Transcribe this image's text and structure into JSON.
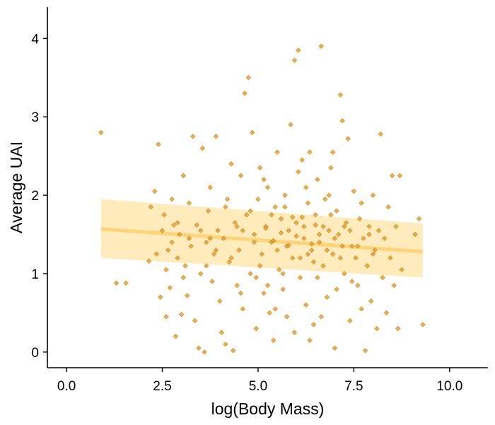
{
  "chart_data": {
    "type": "scatter",
    "title": "",
    "xlabel": "log(Body Mass)",
    "ylabel": "Average UAI",
    "xlim": [
      -0.5,
      11.0
    ],
    "ylim": [
      -0.2,
      4.4
    ],
    "xticks": [
      0.0,
      2.5,
      5.0,
      7.5,
      10.0
    ],
    "xtick_labels": [
      "0.0",
      "2.5",
      "5.0",
      "7.5",
      "10.0"
    ],
    "yticks": [
      0,
      1,
      2,
      3,
      4
    ],
    "ytick_labels": [
      "0",
      "1",
      "2",
      "3",
      "4"
    ],
    "grid": false,
    "legend": "none",
    "colors": {
      "points": "#E69F2E",
      "fit_line": "#FFD37A",
      "ribbon": "#FFE7B0",
      "axis": "#000000"
    },
    "trend": {
      "x": [
        0.9,
        9.3
      ],
      "y": [
        1.57,
        1.28
      ],
      "ci_lower": [
        1.2,
        0.95
      ],
      "ci_upper": [
        1.95,
        1.64
      ]
    },
    "points": [
      [
        0.9,
        2.8
      ],
      [
        1.3,
        0.88
      ],
      [
        1.55,
        0.88
      ],
      [
        2.15,
        1.16
      ],
      [
        2.2,
        1.85
      ],
      [
        2.3,
        2.05
      ],
      [
        2.35,
        1.25
      ],
      [
        2.4,
        2.65
      ],
      [
        2.45,
        0.7
      ],
      [
        2.5,
        1.55
      ],
      [
        2.55,
        1.75
      ],
      [
        2.6,
        1.05
      ],
      [
        2.6,
        0.45
      ],
      [
        2.65,
        1.3
      ],
      [
        2.7,
        0.82
      ],
      [
        2.75,
        1.95
      ],
      [
        2.8,
        1.62
      ],
      [
        2.85,
        0.2
      ],
      [
        2.9,
        1.2
      ],
      [
        2.95,
        1.5
      ],
      [
        3.0,
        0.48
      ],
      [
        3.05,
        2.25
      ],
      [
        3.1,
        1.1
      ],
      [
        3.15,
        0.72
      ],
      [
        3.2,
        1.9
      ],
      [
        3.25,
        1.35
      ],
      [
        3.3,
        2.75
      ],
      [
        3.35,
        0.4
      ],
      [
        3.4,
        1.62
      ],
      [
        3.45,
        0.05
      ],
      [
        3.5,
        1.0
      ],
      [
        3.55,
        2.6
      ],
      [
        3.6,
        0.0
      ],
      [
        3.65,
        1.4
      ],
      [
        3.7,
        1.8
      ],
      [
        3.75,
        2.1
      ],
      [
        3.8,
        0.9
      ],
      [
        3.85,
        1.25
      ],
      [
        3.9,
        2.75
      ],
      [
        3.95,
        1.55
      ],
      [
        4.0,
        0.65
      ],
      [
        4.05,
        0.25
      ],
      [
        4.1,
        1.45
      ],
      [
        4.15,
        0.1
      ],
      [
        4.2,
        1.95
      ],
      [
        4.25,
        1.15
      ],
      [
        4.3,
        2.4
      ],
      [
        4.35,
        0.02
      ],
      [
        4.4,
        1.65
      ],
      [
        4.45,
        0.85
      ],
      [
        4.5,
        1.3
      ],
      [
        4.55,
        2.25
      ],
      [
        4.6,
        0.55
      ],
      [
        4.65,
        3.3
      ],
      [
        4.7,
        1.75
      ],
      [
        4.75,
        3.5
      ],
      [
        4.8,
        1.0
      ],
      [
        4.85,
        2.8
      ],
      [
        4.9,
        1.5
      ],
      [
        4.95,
        0.3
      ],
      [
        5.0,
        1.95
      ],
      [
        5.05,
        2.35
      ],
      [
        5.1,
        1.25
      ],
      [
        5.15,
        0.75
      ],
      [
        5.2,
        1.6
      ],
      [
        5.25,
        2.1
      ],
      [
        5.3,
        0.5
      ],
      [
        5.35,
        1.4
      ],
      [
        5.4,
        0.15
      ],
      [
        5.45,
        1.85
      ],
      [
        5.5,
        2.55
      ],
      [
        5.55,
        1.05
      ],
      [
        5.6,
        1.7
      ],
      [
        5.65,
        0.8
      ],
      [
        5.7,
        2.0
      ],
      [
        5.75,
        1.35
      ],
      [
        5.8,
        1.55
      ],
      [
        5.85,
        2.9
      ],
      [
        5.9,
        1.2
      ],
      [
        5.95,
        3.72
      ],
      [
        6.0,
        1.65
      ],
      [
        6.05,
        3.85
      ],
      [
        6.1,
        0.95
      ],
      [
        6.15,
        2.45
      ],
      [
        6.2,
        1.45
      ],
      [
        6.25,
        0.6
      ],
      [
        6.3,
        1.9
      ],
      [
        6.35,
        2.55
      ],
      [
        6.4,
        1.3
      ],
      [
        6.45,
        0.35
      ],
      [
        6.5,
        1.75
      ],
      [
        6.55,
        2.2
      ],
      [
        6.6,
        1.4
      ],
      [
        6.65,
        3.9
      ],
      [
        6.7,
        1.1
      ],
      [
        6.75,
        1.95
      ],
      [
        6.8,
        0.7
      ],
      [
        6.85,
        1.55
      ],
      [
        6.9,
        2.35
      ],
      [
        6.95,
        1.25
      ],
      [
        7.0,
        0.05
      ],
      [
        7.05,
        1.8
      ],
      [
        7.1,
        1.5
      ],
      [
        7.15,
        3.28
      ],
      [
        7.2,
        2.95
      ],
      [
        7.25,
        1.0
      ],
      [
        7.3,
        1.65
      ],
      [
        7.35,
        2.72
      ],
      [
        7.4,
        0.4
      ],
      [
        7.45,
        1.35
      ],
      [
        7.5,
        2.05
      ],
      [
        7.55,
        1.2
      ],
      [
        7.6,
        0.85
      ],
      [
        7.65,
        1.7
      ],
      [
        7.7,
        0.55
      ],
      [
        7.75,
        1.45
      ],
      [
        7.8,
        0.02
      ],
      [
        7.85,
        1.1
      ],
      [
        7.9,
        1.6
      ],
      [
        7.95,
        0.65
      ],
      [
        8.0,
        2.0
      ],
      [
        8.05,
        1.3
      ],
      [
        8.1,
        0.3
      ],
      [
        8.15,
        1.55
      ],
      [
        8.2,
        2.78
      ],
      [
        8.25,
        0.95
      ],
      [
        8.3,
        1.45
      ],
      [
        8.35,
        0.5
      ],
      [
        8.45,
        1.2
      ],
      [
        8.5,
        2.25
      ],
      [
        8.55,
        0.85
      ],
      [
        8.6,
        1.6
      ],
      [
        8.65,
        0.3
      ],
      [
        8.7,
        2.25
      ],
      [
        8.75,
        1.05
      ],
      [
        9.1,
        1.5
      ],
      [
        9.2,
        1.7
      ],
      [
        9.3,
        0.35
      ],
      [
        5.2,
        1.58
      ],
      [
        5.4,
        1.42
      ],
      [
        5.6,
        1.52
      ],
      [
        5.8,
        1.36
      ],
      [
        6.0,
        1.48
      ],
      [
        6.2,
        1.6
      ],
      [
        6.4,
        1.38
      ],
      [
        6.6,
        1.5
      ],
      [
        6.8,
        1.3
      ],
      [
        7.0,
        1.45
      ],
      [
        7.2,
        1.35
      ],
      [
        6.3,
        1.25
      ],
      [
        6.5,
        1.62
      ],
      [
        5.9,
        1.72
      ],
      [
        6.1,
        1.2
      ],
      [
        6.7,
        1.6
      ],
      [
        5.5,
        1.3
      ],
      [
        7.4,
        1.55
      ],
      [
        4.9,
        1.4
      ],
      [
        6.9,
        1.75
      ],
      [
        5.7,
        1.85
      ],
      [
        6.15,
        1.72
      ],
      [
        6.45,
        1.15
      ],
      [
        5.35,
        1.75
      ],
      [
        7.15,
        1.2
      ],
      [
        4.6,
        1.55
      ],
      [
        3.9,
        1.3
      ],
      [
        3.5,
        1.55
      ],
      [
        3.2,
        1.45
      ],
      [
        2.9,
        1.65
      ],
      [
        4.3,
        1.2
      ],
      [
        4.8,
        1.8
      ],
      [
        5.05,
        1.1
      ],
      [
        7.6,
        1.35
      ],
      [
        8.0,
        1.25
      ],
      [
        7.9,
        1.5
      ],
      [
        6.55,
        0.95
      ],
      [
        5.65,
        1.0
      ],
      [
        4.45,
        1.6
      ],
      [
        3.75,
        1.45
      ],
      [
        6.85,
        2.0
      ],
      [
        7.05,
        0.8
      ],
      [
        5.15,
        2.2
      ],
      [
        6.25,
        2.1
      ],
      [
        4.15,
        1.85
      ],
      [
        3.65,
        1.1
      ],
      [
        2.75,
        1.4
      ],
      [
        6.65,
        0.45
      ],
      [
        7.45,
        0.9
      ],
      [
        5.95,
        0.25
      ],
      [
        4.95,
        0.95
      ],
      [
        5.75,
        0.45
      ],
      [
        6.95,
        2.55
      ],
      [
        8.4,
        1.85
      ],
      [
        3.05,
        0.95
      ],
      [
        7.7,
        1.9
      ],
      [
        5.25,
        0.85
      ],
      [
        4.55,
        0.75
      ],
      [
        6.05,
        2.3
      ],
      [
        6.35,
        0.15
      ],
      [
        5.45,
        0.55
      ],
      [
        7.25,
        1.6
      ]
    ]
  }
}
